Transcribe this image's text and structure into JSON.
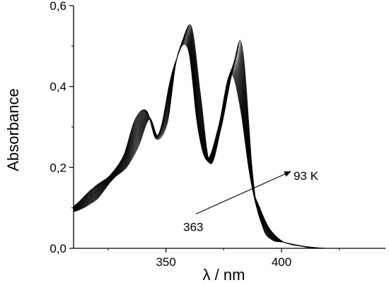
{
  "chart_data": {
    "type": "line",
    "xlabel": "λ / nm",
    "ylabel": "Absorbance",
    "xlim": [
      310,
      445
    ],
    "ylim": [
      0.0,
      0.6
    ],
    "x_ticks": [
      350,
      400
    ],
    "x_tick_labels": [
      "350",
      "400"
    ],
    "y_ticks": [
      0.0,
      0.2,
      0.4,
      0.6
    ],
    "y_tick_labels": [
      "0,0",
      "0,2",
      "0,4",
      "0,6"
    ],
    "grid": false,
    "legend": "none",
    "series_count": 40,
    "reference_spectra": {
      "x": [
        310,
        320,
        327,
        333,
        338,
        343,
        347,
        352,
        356,
        361,
        365,
        369,
        374,
        379,
        383,
        388,
        392,
        396,
        401,
        405,
        410,
        415,
        420
      ],
      "low_temperature_93K": [
        0.09,
        0.12,
        0.17,
        0.2,
        0.25,
        0.32,
        0.28,
        0.42,
        0.49,
        0.55,
        0.38,
        0.21,
        0.3,
        0.44,
        0.5,
        0.16,
        0.05,
        0.02,
        0.015,
        0.01,
        0.005,
        0.002,
        0.0
      ],
      "high_temperature_363K": [
        0.1,
        0.15,
        0.18,
        0.23,
        0.32,
        0.34,
        0.27,
        0.31,
        0.47,
        0.49,
        0.3,
        0.22,
        0.3,
        0.43,
        0.36,
        0.17,
        0.1,
        0.05,
        0.02,
        0.01,
        0.005,
        0.0,
        0.0
      ]
    },
    "annotations": {
      "upper_label": "93 K",
      "lower_label": "363",
      "arrow": {
        "from": [
          363,
          0.085
        ],
        "to": [
          404,
          0.19
        ]
      }
    }
  },
  "colors": {
    "curve": "#000000",
    "axis": "#000000",
    "background": "#ffffff"
  }
}
